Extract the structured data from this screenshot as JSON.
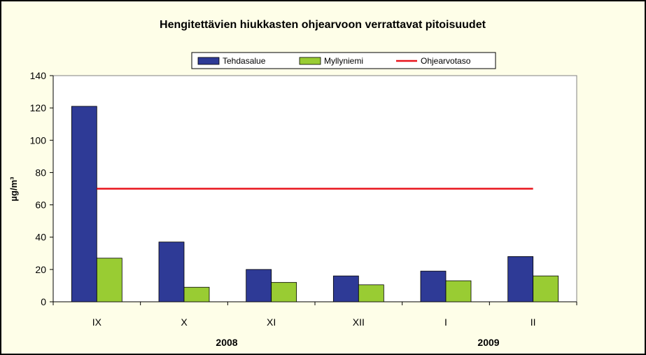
{
  "chart_data": {
    "type": "bar",
    "title": "Hengitettävien hiukkasten ohjearvoon verrattavat pitoisuudet",
    "ylabel": "µg/m³",
    "xlabel": "",
    "categories": [
      "IX",
      "X",
      "XI",
      "XII",
      "I",
      "II"
    ],
    "year_labels": [
      "2008",
      "2009"
    ],
    "yticks": [
      "0",
      "20",
      "40",
      "60",
      "80",
      "100",
      "120",
      "140"
    ],
    "ylim": [
      0,
      140
    ],
    "series": [
      {
        "name": "Tehdasalue",
        "values": [
          121,
          37,
          20,
          16,
          19,
          28
        ],
        "color": "#2e3a96"
      },
      {
        "name": "Myllyniemi",
        "values": [
          27,
          9,
          12,
          10.5,
          13,
          16
        ],
        "color": "#99cc33"
      }
    ],
    "reference_line": {
      "name": "Ohjearvotaso",
      "value": 70,
      "color": "#e8131b"
    },
    "legend_position": "top",
    "grid": false,
    "plot_background": "#ffffff",
    "figure_background": "#fefee8"
  }
}
